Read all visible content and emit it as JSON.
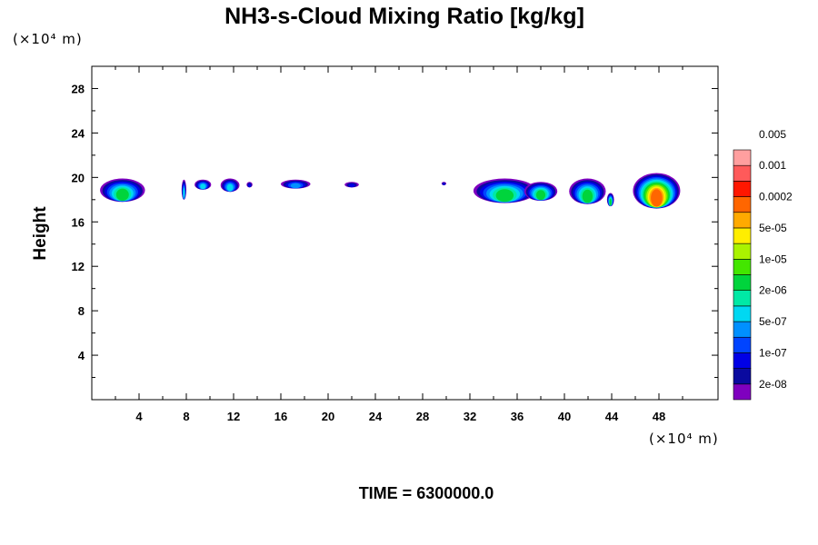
{
  "chart_data": {
    "type": "heatmap",
    "title": "NH3-s-Cloud Mixing Ratio [kg/kg]",
    "ylabel": "Height",
    "xunit": "(×10⁴ m)",
    "yunit": "(×10⁴ m)",
    "xlim": [
      0,
      53
    ],
    "ylim": [
      0,
      30
    ],
    "xticks": [
      4,
      8,
      12,
      16,
      20,
      24,
      28,
      32,
      36,
      40,
      44,
      48
    ],
    "yticks": [
      4,
      8,
      12,
      16,
      20,
      24,
      28
    ],
    "grid": false,
    "colorbar": {
      "placement": "right",
      "colors": [
        "#7f00bf",
        "#0a0a9f",
        "#0000e6",
        "#0044ff",
        "#0090ff",
        "#00d8f2",
        "#00e9a5",
        "#00d43c",
        "#43e600",
        "#aaf300",
        "#ffee00",
        "#ffaa00",
        "#ff6600",
        "#ff1700",
        "#ff5a5a",
        "#ff9f9f"
      ],
      "labels": [
        "2e-08",
        "1e-07",
        "5e-07",
        "2e-06",
        "1e-05",
        "5e-05",
        "0.0002",
        "0.001",
        "0.005"
      ]
    },
    "cloud_cells": [
      {
        "x0": 0.7,
        "x1": 4.5,
        "top": 19.9,
        "bottom": 17.8,
        "peak": 7
      },
      {
        "x0": 7.6,
        "x1": 8.0,
        "top": 19.8,
        "bottom": 18.0,
        "peak": 5
      },
      {
        "x0": 8.7,
        "x1": 10.1,
        "top": 19.8,
        "bottom": 18.9,
        "peak": 5
      },
      {
        "x0": 10.9,
        "x1": 12.5,
        "top": 19.9,
        "bottom": 18.7,
        "peak": 5
      },
      {
        "x0": 13.1,
        "x1": 13.6,
        "top": 19.6,
        "bottom": 19.1,
        "peak": 2
      },
      {
        "x0": 16.0,
        "x1": 18.5,
        "top": 19.8,
        "bottom": 19.0,
        "peak": 4
      },
      {
        "x0": 21.4,
        "x1": 22.6,
        "top": 19.6,
        "bottom": 19.1,
        "peak": 2
      },
      {
        "x0": 29.6,
        "x1": 30.0,
        "top": 19.6,
        "bottom": 19.3,
        "peak": 2
      },
      {
        "x0": 32.3,
        "x1": 37.6,
        "top": 19.9,
        "bottom": 17.7,
        "peak": 7
      },
      {
        "x0": 36.6,
        "x1": 39.4,
        "top": 19.6,
        "bottom": 17.9,
        "peak": 7
      },
      {
        "x0": 40.4,
        "x1": 43.5,
        "top": 19.9,
        "bottom": 17.6,
        "peak": 7
      },
      {
        "x0": 43.6,
        "x1": 44.2,
        "top": 18.6,
        "bottom": 17.4,
        "peak": 7
      },
      {
        "x0": 45.8,
        "x1": 49.8,
        "top": 20.4,
        "bottom": 17.2,
        "peak": 12
      }
    ]
  },
  "time_label": "TIME = 6300000.0"
}
